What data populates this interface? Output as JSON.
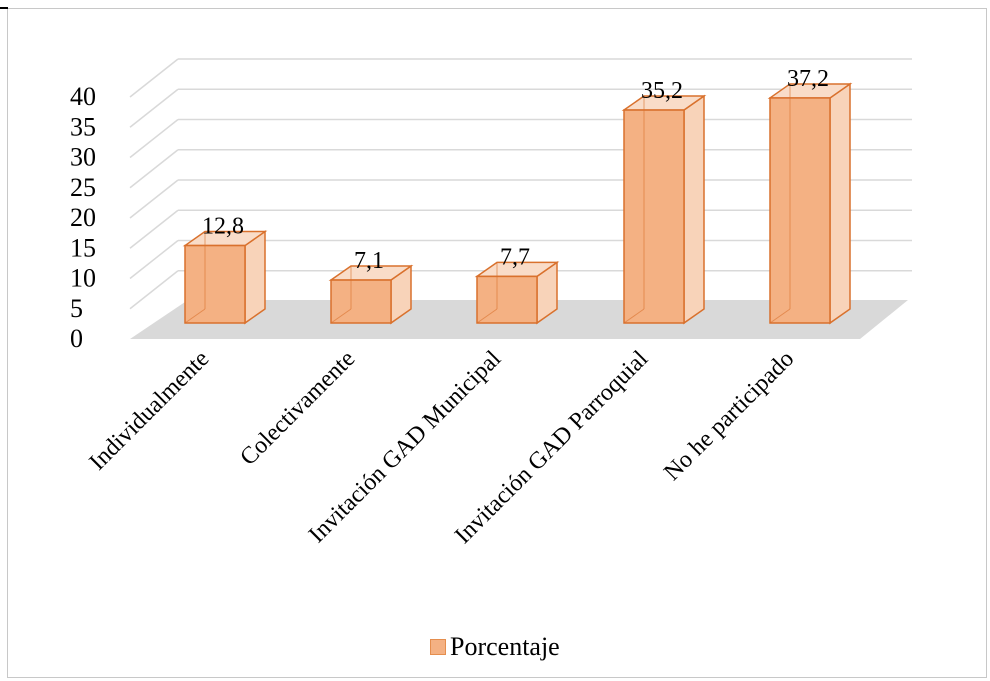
{
  "chart_data": {
    "type": "bar",
    "categories": [
      "Individualmente",
      "Colectivamente",
      "Invitación GAD Municipal",
      "Invitación GAD Parroquial",
      "No he participado"
    ],
    "series": [
      {
        "name": "Porcentaje",
        "values": [
          12.8,
          7.1,
          7.7,
          35.2,
          37.2
        ]
      }
    ],
    "data_labels": [
      "12,8",
      "7,1",
      "7,7",
      "35,2",
      "37,2"
    ],
    "y_ticks": [
      "0",
      "5",
      "10",
      "15",
      "20",
      "25",
      "30",
      "35",
      "40"
    ],
    "ylim": [
      0,
      40
    ],
    "grid": true,
    "legend_position": "bottom",
    "style": "3d-column",
    "colors": {
      "bar_front": "#f4b183",
      "bar_side": "#f8d3b9",
      "bar_top": "#f9dcc8",
      "bar_edge": "#d9712d",
      "floor": "#d9d9d9",
      "gridline": "#d9d9d9"
    }
  },
  "legend": {
    "label": "Porcentaje"
  }
}
